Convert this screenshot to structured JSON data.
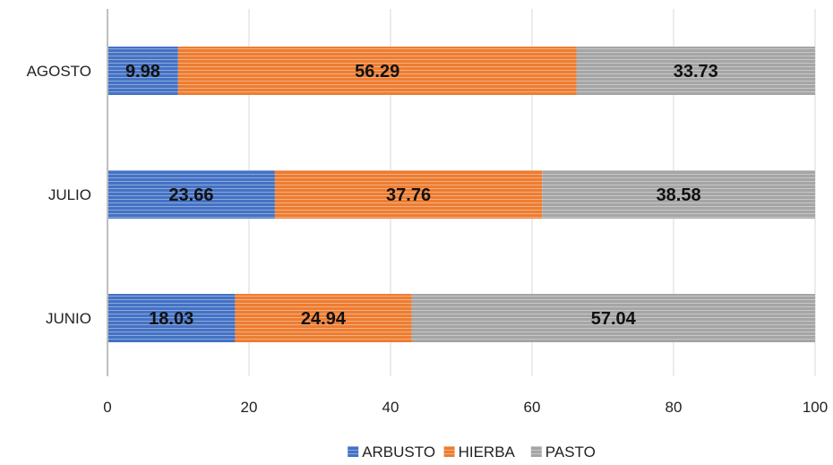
{
  "chart_data": {
    "type": "bar",
    "orientation": "horizontal",
    "stacked": true,
    "categories": [
      "JUNIO",
      "JULIO",
      "AGOSTO"
    ],
    "series": [
      {
        "name": "ARBUSTO",
        "color": "#4472C4",
        "values": [
          18.03,
          23.66,
          9.98
        ]
      },
      {
        "name": "HIERBA",
        "color": "#ED7D31",
        "values": [
          24.94,
          37.76,
          56.29
        ]
      },
      {
        "name": "PASTO",
        "color": "#A5A5A5",
        "values": [
          57.04,
          38.58,
          33.73
        ]
      }
    ],
    "xlim": [
      0,
      100
    ],
    "xticks": [
      0,
      20,
      40,
      60,
      80,
      100
    ],
    "grid": true,
    "legend": "bottom",
    "data_labels": true
  }
}
